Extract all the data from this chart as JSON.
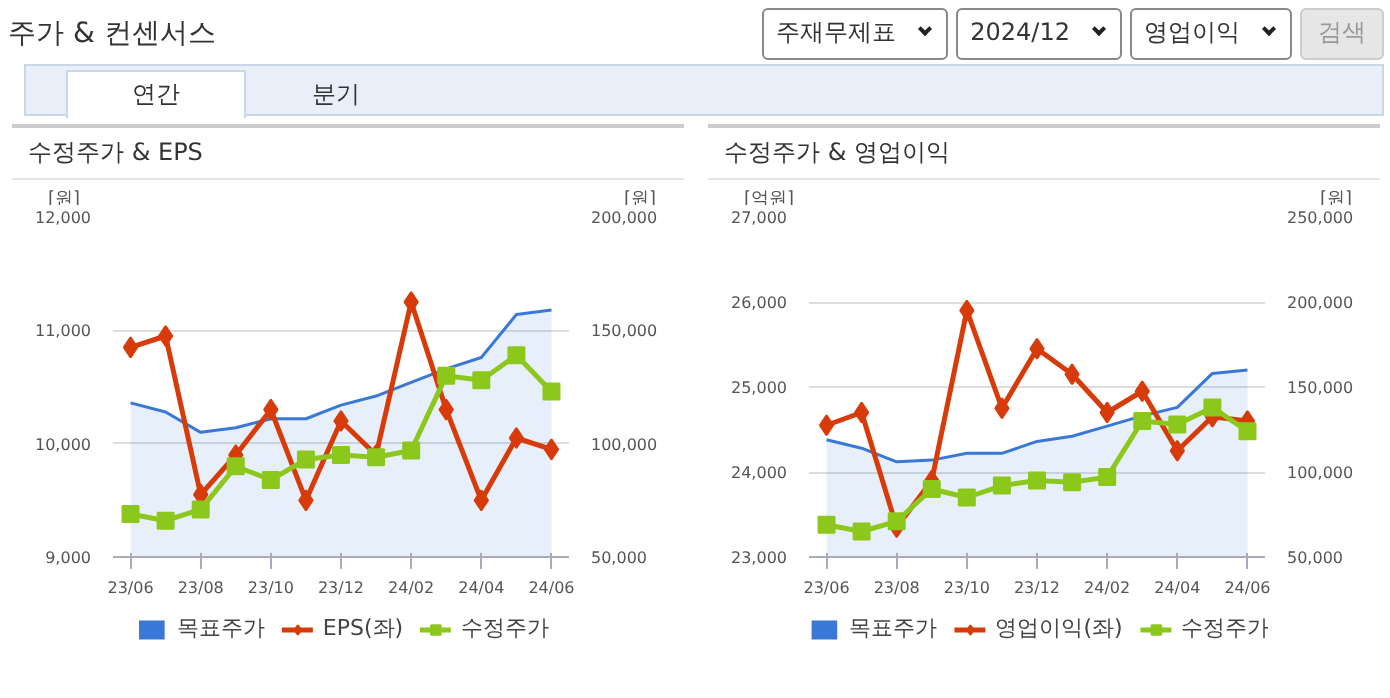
{
  "chart_data": [
    {
      "type": "other",
      "title": "주가 & 컨센서스",
      "annotations": [
        "주재무제표",
        "2024/12",
        "영업이익",
        "검색",
        "연간",
        "분기"
      ]
    },
    {
      "type": "line",
      "title": "수정주가 & EPS",
      "ylabel": "[원]",
      "y2label": "[원]",
      "categories": [
        "23/06",
        null,
        "23/08",
        null,
        "23/10",
        null,
        "23/12",
        null,
        "24/02",
        null,
        "24/04",
        null,
        "24/06"
      ],
      "ylim": [
        9000,
        12000
      ],
      "yticks": [
        {
          "value": 9000,
          "label": "9,000"
        },
        {
          "value": 10000,
          "label": "10,000"
        },
        {
          "value": 11000,
          "label": "11,000"
        },
        {
          "value": 12000,
          "label": "12,000"
        }
      ],
      "y2lim": [
        50000,
        200000
      ],
      "y2ticks": [
        {
          "value": 50000,
          "label": "50,000"
        },
        {
          "value": 100000,
          "label": "100,000"
        },
        {
          "value": 150000,
          "label": "150,000"
        },
        {
          "value": 200000,
          "label": "200,000"
        }
      ],
      "grid": "y",
      "legend": "bottom",
      "series": [
        {
          "name": "목표주가",
          "type": "area",
          "axis": "y2",
          "color": "#3a78d8",
          "values": [
            118000,
            114000,
            105000,
            107000,
            111000,
            111000,
            117000,
            121000,
            127000,
            133000,
            138000,
            157000,
            159000
          ]
        },
        {
          "name": "EPS(좌)",
          "type": "line",
          "marker": "diamond",
          "color": "#d83b0a",
          "values": [
            10850,
            10950,
            9550,
            9900,
            10300,
            9500,
            10200,
            9900,
            11250,
            10300,
            9500,
            10050,
            9950
          ]
        },
        {
          "name": "수정주가",
          "type": "line",
          "marker": "square",
          "axis": "y2",
          "color": "#8cc81c",
          "values": [
            69000,
            66000,
            71000,
            90000,
            84000,
            93000,
            95000,
            94000,
            97000,
            130000,
            128000,
            139000,
            123000
          ]
        }
      ]
    },
    {
      "type": "line",
      "title": "수정주가 & 영업이익",
      "ylabel": "[억원]",
      "y2label": "[원]",
      "categories": [
        "23/06",
        null,
        "23/08",
        null,
        "23/10",
        null,
        "23/12",
        null,
        "24/02",
        null,
        "24/04",
        null,
        "24/06"
      ],
      "ylim": [
        23000,
        27000
      ],
      "yticks": [
        {
          "value": 23000,
          "label": "23,000"
        },
        {
          "value": 24000,
          "label": "24,000"
        },
        {
          "value": 25000,
          "label": "25,000"
        },
        {
          "value": 26000,
          "label": "26,000"
        },
        {
          "value": 27000,
          "label": "27,000"
        }
      ],
      "y2lim": [
        50000,
        250000
      ],
      "y2ticks": [
        {
          "value": 50000,
          "label": "50,000"
        },
        {
          "value": 100000,
          "label": "100,000"
        },
        {
          "value": 150000,
          "label": "150,000"
        },
        {
          "value": 200000,
          "label": "200,000"
        },
        {
          "value": 250000,
          "label": "250,000"
        }
      ],
      "grid": "y",
      "legend": "bottom",
      "series": [
        {
          "name": "목표주가",
          "type": "area",
          "axis": "y2",
          "color": "#3a78d8",
          "values": [
            119000,
            114000,
            106000,
            107000,
            111000,
            111000,
            118000,
            121000,
            127000,
            133000,
            138000,
            158000,
            160000
          ]
        },
        {
          "name": "영업이익(좌)",
          "type": "line",
          "marker": "diamond",
          "color": "#d83b0a",
          "values": [
            24550,
            24700,
            23350,
            23900,
            25900,
            24750,
            25450,
            25150,
            24700,
            24950,
            24250,
            24650,
            24600
          ]
        },
        {
          "name": "수정주가",
          "type": "line",
          "marker": "square",
          "axis": "y2",
          "color": "#8cc81c",
          "values": [
            69000,
            65000,
            71000,
            90000,
            85000,
            92000,
            95000,
            94000,
            97000,
            130000,
            128000,
            138000,
            124000
          ]
        }
      ]
    }
  ]
}
